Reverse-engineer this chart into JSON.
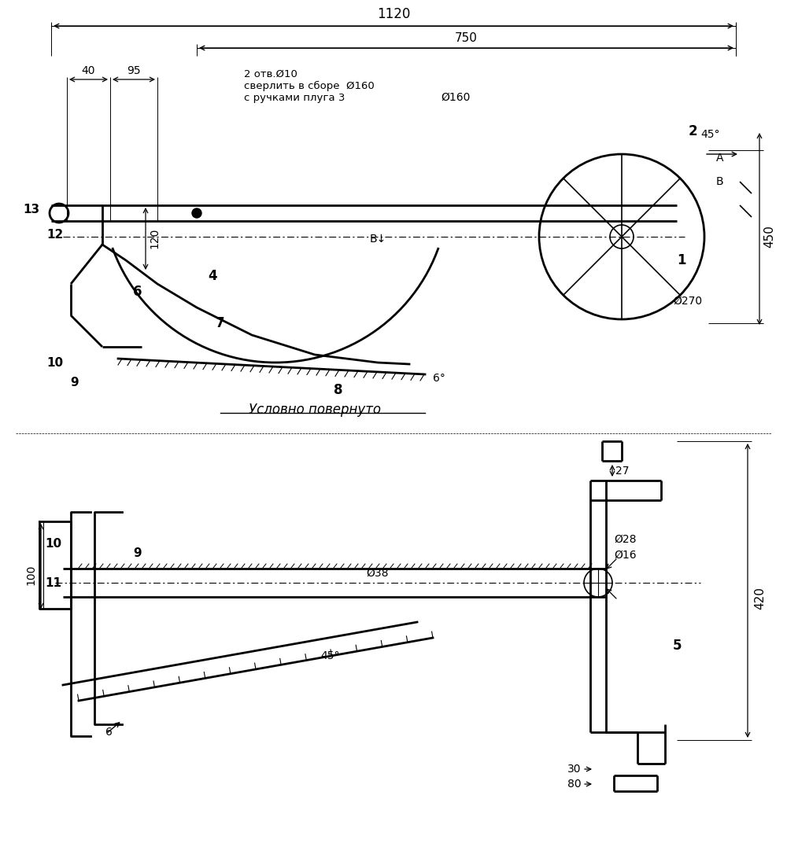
{
  "bg_color": "#ffffff",
  "line_color": "#000000",
  "fig_width": 10.0,
  "fig_height": 10.91,
  "dpi": 100,
  "annotations": {
    "dim_1120": "1120",
    "dim_750": "750",
    "dim_40": "40",
    "dim_95": "95",
    "dim_120": "120",
    "dim_450": "450",
    "dim_270": "Ø270",
    "dim_160": "Ø160",
    "dim_45deg_top": "45°",
    "dim_6deg": "6°",
    "label_A": "A",
    "label_B_top": "B",
    "label_B_arrow": "B↓",
    "note1": "2 отв.Ø10",
    "note2": "сверлить в сборе  Ø160",
    "note3": "с ручками плуга",
    "label_usl": "Условно повернуто",
    "parts_top": [
      "1",
      "2",
      "3",
      "4",
      "5",
      "6",
      "7",
      "8",
      "9",
      "10",
      "11",
      "12",
      "13"
    ],
    "dim_27": "27",
    "dim_38": "Ø38",
    "dim_28": "Ø28",
    "dim_16": "Ø16",
    "dim_420": "420",
    "dim_100": "100",
    "dim_45deg_bot": "45°",
    "dim_30": "30",
    "dim_80": "80"
  }
}
